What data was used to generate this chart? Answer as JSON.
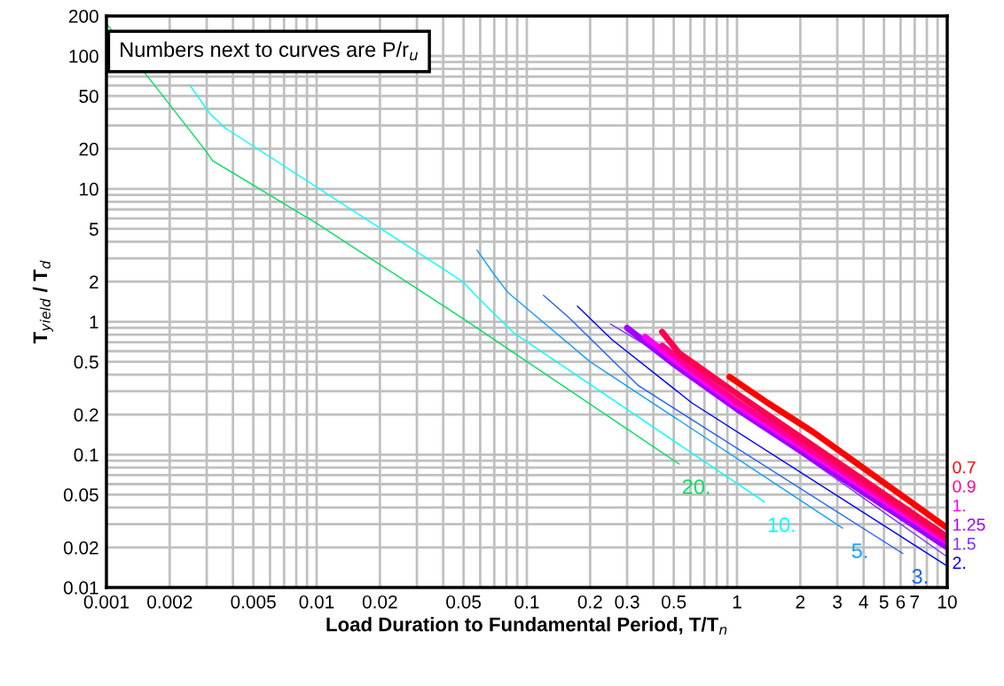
{
  "chart_data": {
    "type": "line",
    "xlabel": "Load Duration to Fundamental Period, T/T$_{n}$",
    "ylabel": "T$_{yield}$ / T$_{d}$",
    "log": "xy",
    "grid": true,
    "marker": "none",
    "line_style": "solid",
    "xlim": [
      0.001,
      10
    ],
    "ylim": [
      0.01,
      200
    ],
    "xticks": [
      0.001,
      0.002,
      0.005,
      0.01,
      0.02,
      0.05,
      0.1,
      0.2,
      0.3,
      0.5,
      1,
      2,
      3,
      4,
      5,
      6,
      7,
      10
    ],
    "yticks": [
      0.01,
      0.02,
      0.05,
      0.1,
      0.2,
      0.5,
      1,
      2,
      5,
      10,
      20,
      50,
      100,
      200
    ],
    "series": [
      {
        "name": "20.",
        "color": "#00e060",
        "x": [
          0.001,
          0.003,
          0.0032,
          0.01,
          0.05,
          0.53
        ],
        "values": [
          175,
          18.9,
          16.3,
          5.5,
          1.05,
          0.085
        ]
      },
      {
        "name": "10.",
        "color": "#00ffff",
        "x": [
          0.0025,
          0.0031,
          0.00365,
          0.0497,
          0.059,
          0.087,
          1.35
        ],
        "values": [
          60,
          37,
          28.9,
          2.0,
          1.5,
          0.82,
          0.044
        ]
      },
      {
        "name": "5.",
        "color": "#10a0ff",
        "x": [
          0.058,
          0.07,
          0.081,
          0.2,
          3.18
        ],
        "values": [
          3.46,
          2.26,
          1.67,
          0.5,
          0.028
        ]
      },
      {
        "name": "3.",
        "color": "#2060ff",
        "x": [
          0.12,
          0.16,
          0.34,
          6.15
        ],
        "values": [
          1.58,
          1.06,
          0.33,
          0.018
        ]
      },
      {
        "name": "2.",
        "color": "#0000ff",
        "x": [
          0.174,
          0.255,
          0.61,
          10
        ],
        "values": [
          1.31,
          0.73,
          0.245,
          0.0145
        ]
      },
      {
        "name": "1.5",
        "color": "#8030ff",
        "x": [
          0.25,
          0.5,
          1,
          10
        ],
        "values": [
          0.96,
          0.5,
          0.22,
          0.017
        ]
      },
      {
        "name": "1.25",
        "color": "#a000ff",
        "x": [
          0.3,
          0.5,
          1,
          10
        ],
        "values": [
          0.9,
          0.48,
          0.22,
          0.02
        ]
      },
      {
        "name": "1.",
        "color": "#ff00ff",
        "x": [
          0.365,
          0.5,
          1,
          10
        ],
        "values": [
          0.77,
          0.52,
          0.235,
          0.022
        ]
      },
      {
        "name": "0.9",
        "color": "#ff0090",
        "x": [
          0.44,
          0.6,
          1,
          10
        ],
        "values": [
          0.66,
          0.45,
          0.25,
          0.023
        ]
      },
      {
        "color": "#ff0050",
        "x": [
          0.44,
          0.53,
          1.02,
          10
        ],
        "values": [
          0.84,
          0.58,
          0.28,
          0.024
        ]
      },
      {
        "name": "0.7",
        "color": "#ff0000",
        "x": [
          0.92,
          1.4,
          2.3,
          10
        ],
        "values": [
          0.385,
          0.245,
          0.148,
          0.028
        ]
      }
    ],
    "annotations": [
      "Numbers next to curves are P/r$_{u}$"
    ]
  }
}
